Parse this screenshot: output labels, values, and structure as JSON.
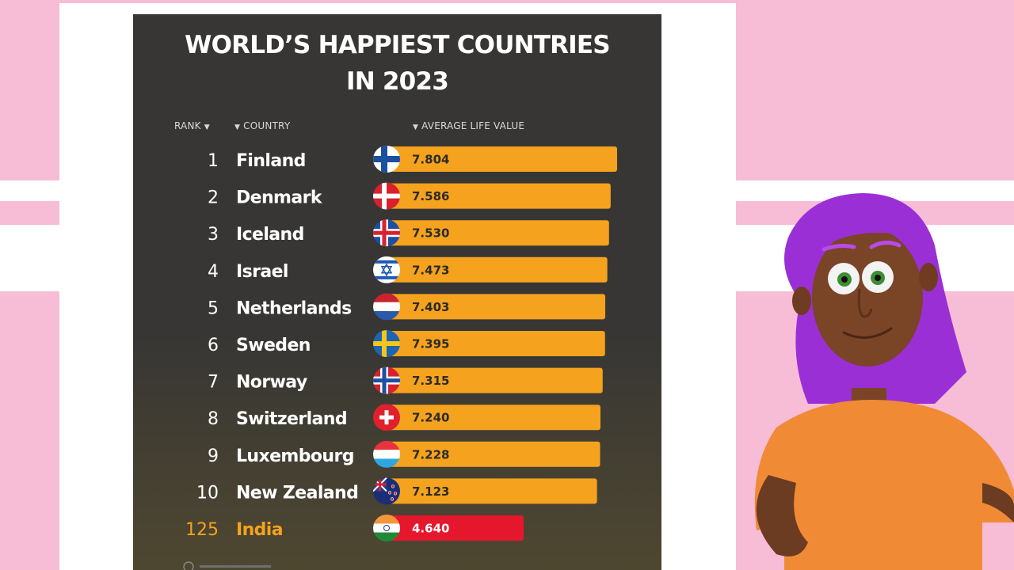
{
  "title_line_1": "WORLD’S HAPPIEST COUNTRIES",
  "title_line_2": "IN 2023",
  "headers": {
    "rank": "RANK",
    "country": "COUNTRY",
    "value": "AVERAGE LIFE VALUE"
  },
  "colors": {
    "page_background": "#f7bcd6",
    "panel_background": "#373634",
    "bar": "#f5a21e",
    "highlight_bar": "#e5172d",
    "highlight_text": "#f5a21e"
  },
  "chart_data": {
    "type": "bar",
    "orientation": "horizontal",
    "title": "WORLD’S HAPPIEST COUNTRIES IN 2023",
    "rows": [
      {
        "rank": "1",
        "country": "Finland",
        "value": 7.804,
        "value_label": "7.804",
        "flag": "finland-flag-icon"
      },
      {
        "rank": "2",
        "country": "Denmark",
        "value": 7.586,
        "value_label": "7.586",
        "flag": "denmark-flag-icon"
      },
      {
        "rank": "3",
        "country": "Iceland",
        "value": 7.53,
        "value_label": "7.530",
        "flag": "iceland-flag-icon"
      },
      {
        "rank": "4",
        "country": "Israel",
        "value": 7.473,
        "value_label": "7.473",
        "flag": "israel-flag-icon"
      },
      {
        "rank": "5",
        "country": "Netherlands",
        "value": 7.403,
        "value_label": "7.403",
        "flag": "netherlands-flag-icon"
      },
      {
        "rank": "6",
        "country": "Sweden",
        "value": 7.395,
        "value_label": "7.395",
        "flag": "sweden-flag-icon"
      },
      {
        "rank": "7",
        "country": "Norway",
        "value": 7.315,
        "value_label": "7.315",
        "flag": "norway-flag-icon"
      },
      {
        "rank": "8",
        "country": "Switzerland",
        "value": 7.24,
        "value_label": "7.240",
        "flag": "switzerland-flag-icon"
      },
      {
        "rank": "9",
        "country": "Luxembourg",
        "value": 7.228,
        "value_label": "7.228",
        "flag": "luxembourg-flag-icon"
      },
      {
        "rank": "10",
        "country": "New Zealand",
        "value": 7.123,
        "value_label": "7.123",
        "flag": "new-zealand-flag-icon"
      },
      {
        "rank": "125",
        "country": "India",
        "value": 4.64,
        "value_label": "4.640",
        "flag": "india-flag-icon",
        "highlight": true
      }
    ]
  }
}
